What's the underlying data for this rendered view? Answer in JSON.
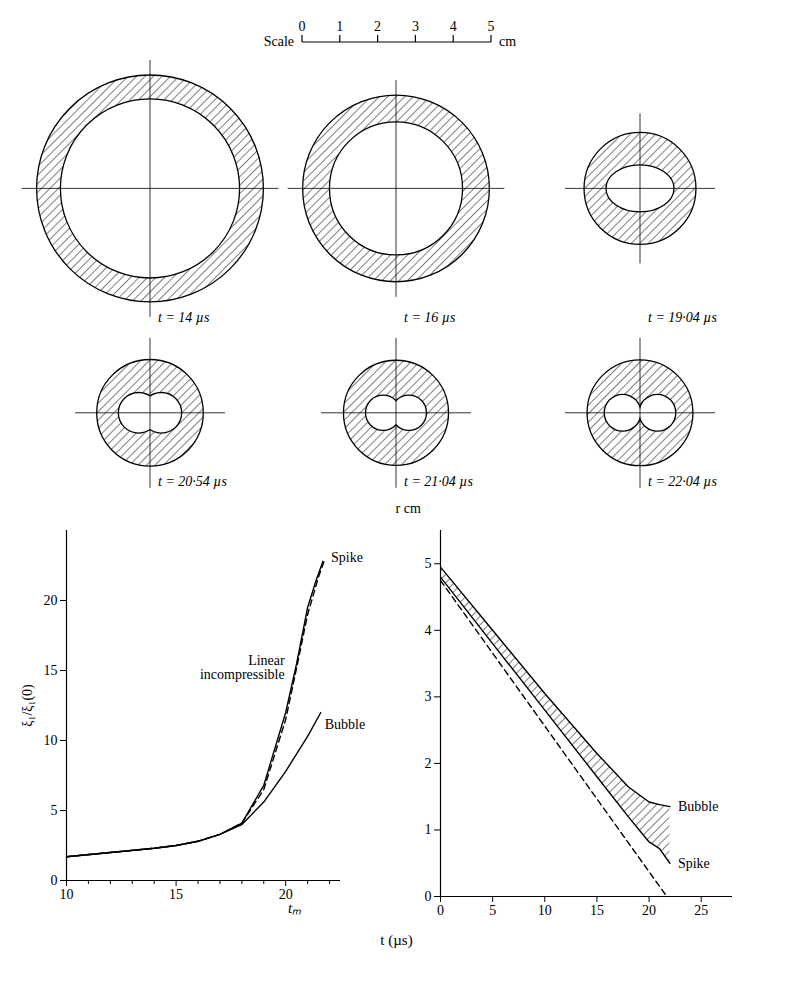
{
  "scale": {
    "label": "Scale",
    "unit": "cm",
    "ticks": [
      0,
      1,
      2,
      3,
      4,
      5
    ]
  },
  "sections": [
    {
      "label": "t = 14 µs",
      "outer_radius": 3.0,
      "cavity": {
        "shape": "circle",
        "radius": 2.37
      }
    },
    {
      "label": "t = 16 µs",
      "outer_radius": 2.47,
      "cavity": {
        "shape": "circle",
        "radius": 1.76
      }
    },
    {
      "label": "t = 19·04 µs",
      "outer_radius": 1.48,
      "cavity": {
        "shape": "ellipse",
        "rx": 0.9,
        "ry": 0.62
      }
    },
    {
      "label": "t = 20·54 µs",
      "outer_radius": 1.41,
      "cavity": {
        "shape": "two_lobes",
        "lobe_radius": 0.52,
        "lobe_offset": 0.3
      }
    },
    {
      "label": "t = 21·04 µs",
      "outer_radius": 1.39,
      "cavity": {
        "shape": "two_lobes",
        "lobe_radius": 0.45,
        "lobe_offset": 0.34
      }
    },
    {
      "label": "t = 22·04 µs",
      "outer_radius": 1.4,
      "cavity": {
        "shape": "two_lobes",
        "lobe_radius": 0.47,
        "lobe_offset": 0.46
      }
    }
  ],
  "xlabel": "t (µs)",
  "chart_data": [
    {
      "type": "line",
      "ylabel": "ξ₁/ξ₁(0)",
      "xlim": [
        10,
        22.5
      ],
      "ylim": [
        0,
        25
      ],
      "xticks": [
        10,
        15,
        20
      ],
      "xticks_minor": [
        11,
        12,
        13,
        14,
        16,
        17,
        18,
        19,
        21,
        22
      ],
      "yticks": [
        0,
        5,
        10,
        15,
        20
      ],
      "annotations": [
        {
          "text": "tₘ",
          "x": 20.4
        }
      ],
      "series": [
        {
          "name": "Linear incompressible",
          "color": "#000000",
          "line_style": "dashed",
          "x": [
            10,
            12,
            14,
            15,
            16,
            17,
            18,
            19,
            20,
            20.5,
            21,
            21.5,
            21.8
          ],
          "values": [
            1.7,
            2.0,
            2.3,
            2.5,
            2.8,
            3.3,
            4.1,
            6.5,
            11.5,
            15.2,
            19,
            21.7,
            23
          ]
        },
        {
          "name": "Spike",
          "color": "#000000",
          "line_style": "solid",
          "x": [
            10,
            12,
            14,
            15,
            16,
            17,
            18,
            19,
            20,
            20.5,
            21,
            21.4,
            21.7
          ],
          "values": [
            1.7,
            2.0,
            2.3,
            2.5,
            2.8,
            3.3,
            4.1,
            6.8,
            12,
            15.5,
            19.5,
            21.5,
            22.8
          ]
        },
        {
          "name": "Bubble",
          "color": "#000000",
          "line_style": "solid",
          "x": [
            10,
            12,
            14,
            15,
            16,
            17,
            18,
            19,
            20,
            21,
            21.6
          ],
          "values": [
            1.7,
            2.0,
            2.3,
            2.5,
            2.8,
            3.3,
            4.0,
            5.6,
            7.8,
            10.3,
            12.0
          ]
        }
      ]
    },
    {
      "type": "line",
      "ylabel": "r cm",
      "xlim": [
        0,
        28
      ],
      "ylim": [
        0,
        5.5
      ],
      "xticks": [
        0,
        5,
        10,
        15,
        20,
        25
      ],
      "yticks": [
        0,
        1,
        2,
        3,
        4,
        5
      ],
      "series": [
        {
          "name": "Bubble",
          "color": "#000000",
          "line_style": "solid",
          "x": [
            0,
            5,
            10,
            15,
            18,
            20,
            21,
            22
          ],
          "values": [
            4.95,
            4.0,
            3.05,
            2.15,
            1.65,
            1.42,
            1.38,
            1.35
          ]
        },
        {
          "name": "Spike",
          "color": "#000000",
          "line_style": "solid",
          "x": [
            0,
            5,
            10,
            15,
            18,
            20,
            21,
            22
          ],
          "values": [
            4.8,
            3.8,
            2.8,
            1.8,
            1.2,
            0.82,
            0.72,
            0.5
          ]
        },
        {
          "color": "#000000",
          "line_style": "dashed",
          "x": [
            0,
            21.7
          ],
          "values": [
            4.75,
            0
          ]
        }
      ]
    }
  ]
}
